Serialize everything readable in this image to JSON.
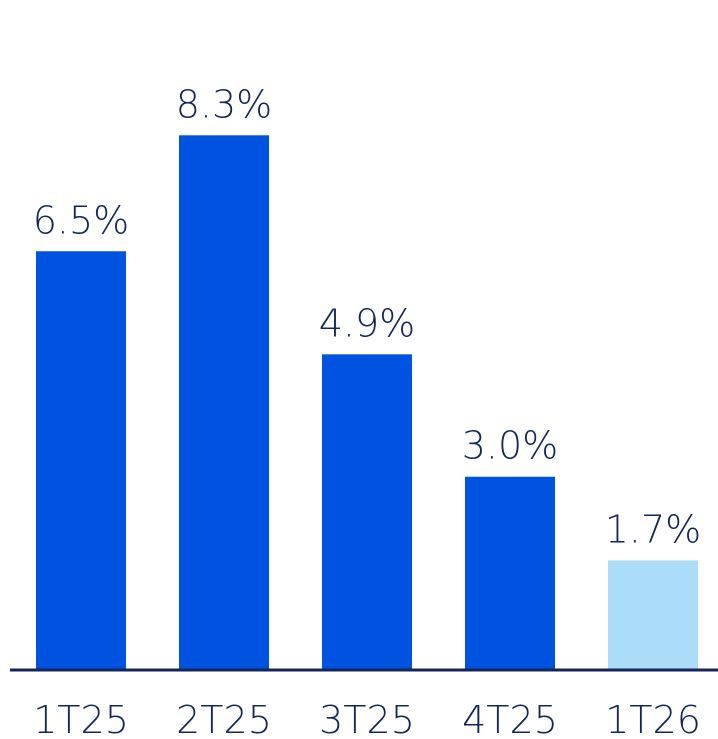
{
  "chart_data": {
    "type": "bar",
    "categories": [
      "1T25",
      "2T25",
      "3T25",
      "4T25",
      "1T26"
    ],
    "values": [
      6.5,
      8.3,
      4.9,
      3.0,
      1.7
    ],
    "data_labels": [
      "6.5%",
      "8.3%",
      "4.9%",
      "3.0%",
      "1.7%"
    ],
    "title": "",
    "xlabel": "",
    "ylabel": "",
    "ylim": [
      0,
      10.4
    ],
    "grid": false,
    "legend": "none",
    "colors": {
      "bar": "#0052e0",
      "bar_highlight": "#abdcf8",
      "axis": "#12265a",
      "text": "#12265a"
    },
    "highlight_index": 4
  }
}
